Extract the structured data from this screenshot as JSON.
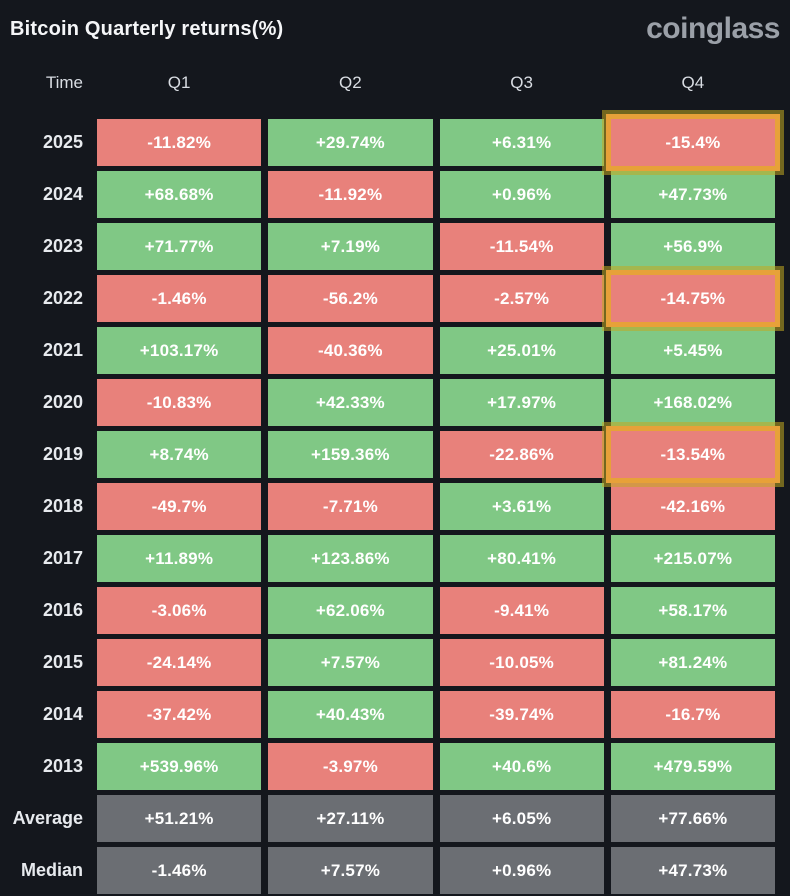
{
  "header": {
    "title": "Bitcoin Quarterly returns(%)",
    "logo": "coinglass"
  },
  "table": {
    "columns": [
      "Time",
      "Q1",
      "Q2",
      "Q3",
      "Q4"
    ],
    "rows": [
      {
        "label": "2025",
        "type": "year",
        "values": [
          "-11.82%",
          "+29.74%",
          "+6.31%",
          "-15.4%"
        ]
      },
      {
        "label": "2024",
        "type": "year",
        "values": [
          "+68.68%",
          "-11.92%",
          "+0.96%",
          "+47.73%"
        ]
      },
      {
        "label": "2023",
        "type": "year",
        "values": [
          "+71.77%",
          "+7.19%",
          "-11.54%",
          "+56.9%"
        ]
      },
      {
        "label": "2022",
        "type": "year",
        "values": [
          "-1.46%",
          "-56.2%",
          "-2.57%",
          "-14.75%"
        ]
      },
      {
        "label": "2021",
        "type": "year",
        "values": [
          "+103.17%",
          "-40.36%",
          "+25.01%",
          "+5.45%"
        ]
      },
      {
        "label": "2020",
        "type": "year",
        "values": [
          "-10.83%",
          "+42.33%",
          "+17.97%",
          "+168.02%"
        ]
      },
      {
        "label": "2019",
        "type": "year",
        "values": [
          "+8.74%",
          "+159.36%",
          "-22.86%",
          "-13.54%"
        ]
      },
      {
        "label": "2018",
        "type": "year",
        "values": [
          "-49.7%",
          "-7.71%",
          "+3.61%",
          "-42.16%"
        ]
      },
      {
        "label": "2017",
        "type": "year",
        "values": [
          "+11.89%",
          "+123.86%",
          "+80.41%",
          "+215.07%"
        ]
      },
      {
        "label": "2016",
        "type": "year",
        "values": [
          "-3.06%",
          "+62.06%",
          "-9.41%",
          "+58.17%"
        ]
      },
      {
        "label": "2015",
        "type": "year",
        "values": [
          "-24.14%",
          "+7.57%",
          "-10.05%",
          "+81.24%"
        ]
      },
      {
        "label": "2014",
        "type": "year",
        "values": [
          "-37.42%",
          "+40.43%",
          "-39.74%",
          "-16.7%"
        ]
      },
      {
        "label": "2013",
        "type": "year",
        "values": [
          "+539.96%",
          "-3.97%",
          "+40.6%",
          "+479.59%"
        ]
      },
      {
        "label": "Average",
        "type": "summary",
        "values": [
          "+51.21%",
          "+27.11%",
          "+6.05%",
          "+77.66%"
        ]
      },
      {
        "label": "Median",
        "type": "summary",
        "values": [
          "-1.46%",
          "+7.57%",
          "+0.96%",
          "+47.73%"
        ]
      }
    ],
    "highlights": [
      [
        0,
        3
      ],
      [
        3,
        3
      ],
      [
        6,
        3
      ]
    ]
  },
  "colors": {
    "background": "#14171d",
    "positive": "#80c885",
    "negative": "#e8817b",
    "summary": "#6b6e73",
    "highlight_border": "#e7a139",
    "highlight_outline": "rgba(193,170,32,0.55)"
  },
  "chart_data": {
    "type": "heatmap",
    "title": "Bitcoin Quarterly returns(%)",
    "columns": [
      "Q1",
      "Q2",
      "Q3",
      "Q4"
    ],
    "rows": [
      "2025",
      "2024",
      "2023",
      "2022",
      "2021",
      "2020",
      "2019",
      "2018",
      "2017",
      "2016",
      "2015",
      "2014",
      "2013",
      "Average",
      "Median"
    ],
    "values": [
      [
        -11.82,
        29.74,
        6.31,
        -15.4
      ],
      [
        68.68,
        -11.92,
        0.96,
        47.73
      ],
      [
        71.77,
        7.19,
        -11.54,
        56.9
      ],
      [
        -1.46,
        -56.2,
        -2.57,
        -14.75
      ],
      [
        103.17,
        -40.36,
        25.01,
        5.45
      ],
      [
        -10.83,
        42.33,
        17.97,
        168.02
      ],
      [
        8.74,
        159.36,
        -22.86,
        -13.54
      ],
      [
        -49.7,
        -7.71,
        3.61,
        -42.16
      ],
      [
        11.89,
        123.86,
        80.41,
        215.07
      ],
      [
        -3.06,
        62.06,
        -9.41,
        58.17
      ],
      [
        -24.14,
        7.57,
        -10.05,
        81.24
      ],
      [
        -37.42,
        40.43,
        -39.74,
        -16.7
      ],
      [
        539.96,
        -3.97,
        40.6,
        479.59
      ],
      [
        51.21,
        27.11,
        6.05,
        77.66
      ],
      [
        -1.46,
        7.57,
        0.96,
        47.73
      ]
    ],
    "highlighted_cells": [
      [
        "2025",
        "Q4"
      ],
      [
        "2022",
        "Q4"
      ],
      [
        "2019",
        "Q4"
      ]
    ],
    "legend": "green = positive quarter, red = negative quarter, gray = summary rows, orange box = highlighted Q4 cells"
  }
}
